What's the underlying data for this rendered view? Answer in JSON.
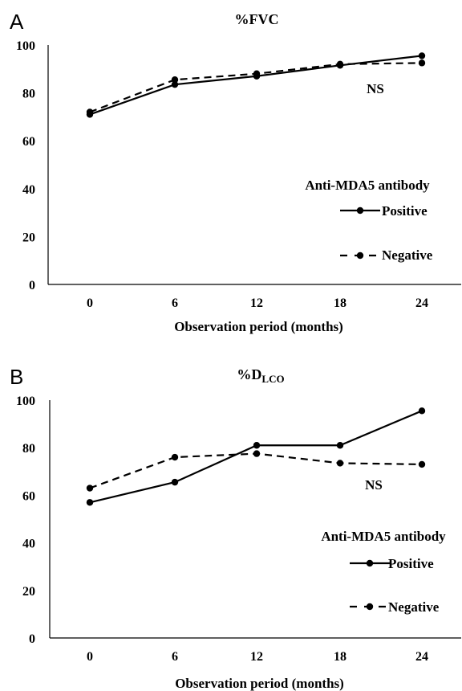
{
  "chart_data": [
    {
      "panel": "A",
      "type": "line",
      "title": "%FVC",
      "title_sub": "",
      "xlabel": "Observation period (months)",
      "ylabel": "",
      "categories": [
        "0",
        "6",
        "12",
        "18",
        "24"
      ],
      "yticks": [
        "0",
        "20",
        "40",
        "60",
        "80",
        "100"
      ],
      "ylim": [
        0,
        100
      ],
      "legend_title": "Anti-MDA5 antibody",
      "series": [
        {
          "name": "Positive",
          "style": "solid",
          "values": [
            71,
            83.5,
            87,
            91.5,
            95.5
          ]
        },
        {
          "name": "Negative",
          "style": "dashed",
          "values": [
            72,
            85.5,
            88,
            92,
            92.5
          ]
        }
      ],
      "annotation": "NS",
      "grid": false,
      "legend_position": "right"
    },
    {
      "panel": "B",
      "type": "line",
      "title": "%D",
      "title_sub": "LCO",
      "xlabel": "Observation period (months)",
      "ylabel": "",
      "categories": [
        "0",
        "6",
        "12",
        "18",
        "24"
      ],
      "yticks": [
        "0",
        "20",
        "40",
        "60",
        "80",
        "100"
      ],
      "ylim": [
        0,
        100
      ],
      "legend_title": "Anti-MDA5 antibody",
      "series": [
        {
          "name": "Positive",
          "style": "solid",
          "values": [
            57,
            65.5,
            81,
            81,
            95.5
          ]
        },
        {
          "name": "Negative",
          "style": "dashed",
          "values": [
            63,
            76,
            77.5,
            73.5,
            73
          ]
        }
      ],
      "annotation": "NS",
      "grid": false,
      "legend_position": "right"
    }
  ]
}
